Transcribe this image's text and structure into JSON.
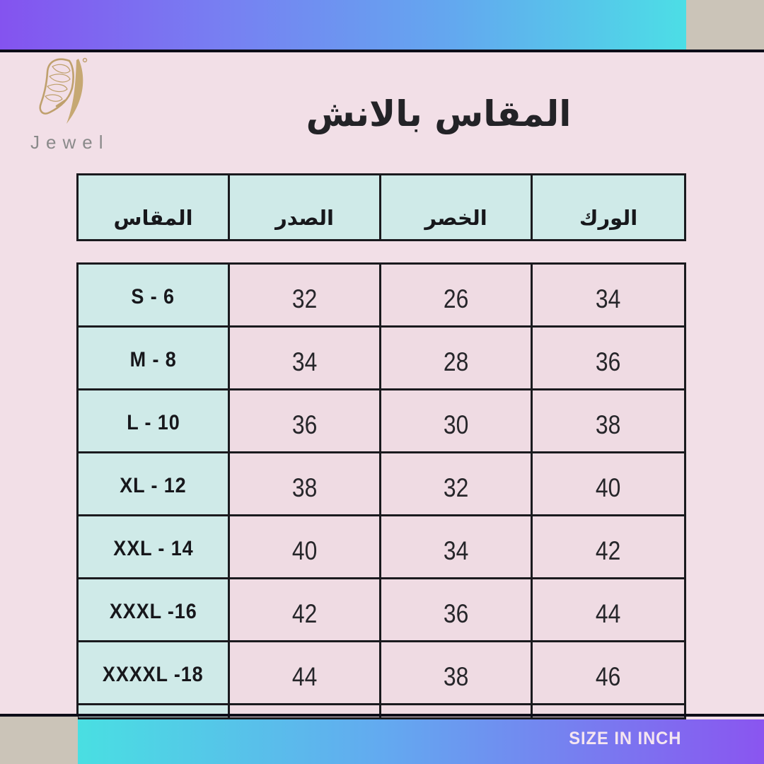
{
  "brand": {
    "name": "Jewel",
    "logo_icon": "butterfly-wing-icon"
  },
  "title": "المقاس بالانش",
  "chart_data": {
    "type": "table",
    "title": "المقاس بالانش",
    "columns": [
      "المقاس",
      "الصدر",
      "الخصر",
      "الورك"
    ],
    "rows": [
      {
        "size": "S - 6",
        "values": [
          "32",
          "26",
          "34"
        ]
      },
      {
        "size": "M - 8",
        "values": [
          "34",
          "28",
          "36"
        ]
      },
      {
        "size": "L - 10",
        "values": [
          "36",
          "30",
          "38"
        ]
      },
      {
        "size": "XL - 12",
        "values": [
          "38",
          "32",
          "40"
        ]
      },
      {
        "size": "XXL - 14",
        "values": [
          "40",
          "34",
          "42"
        ]
      },
      {
        "size": "XXXL -16",
        "values": [
          "42",
          "36",
          "44"
        ]
      },
      {
        "size": "XXXXL -18",
        "values": [
          "44",
          "38",
          "46"
        ]
      }
    ]
  },
  "footer": {
    "label": "SIZE IN INCH"
  },
  "colors": {
    "top_gradient_start": "#8453ef",
    "top_gradient_end": "#4cdee6",
    "bottom_gradient_start": "#49dfe2",
    "bottom_gradient_end": "#8a55f0",
    "corner_beige": "#cbc4b8",
    "background_pink": "#f2dfe7",
    "cell_cyan": "#cfeae8",
    "cell_pink": "#efdbe3",
    "table_border": "#1a1a1e",
    "rule_black": "#0d0d18",
    "logo_gold": "#bfa06d",
    "brand_gray": "#8a8a8a",
    "footer_text": "#f5e5f0"
  }
}
